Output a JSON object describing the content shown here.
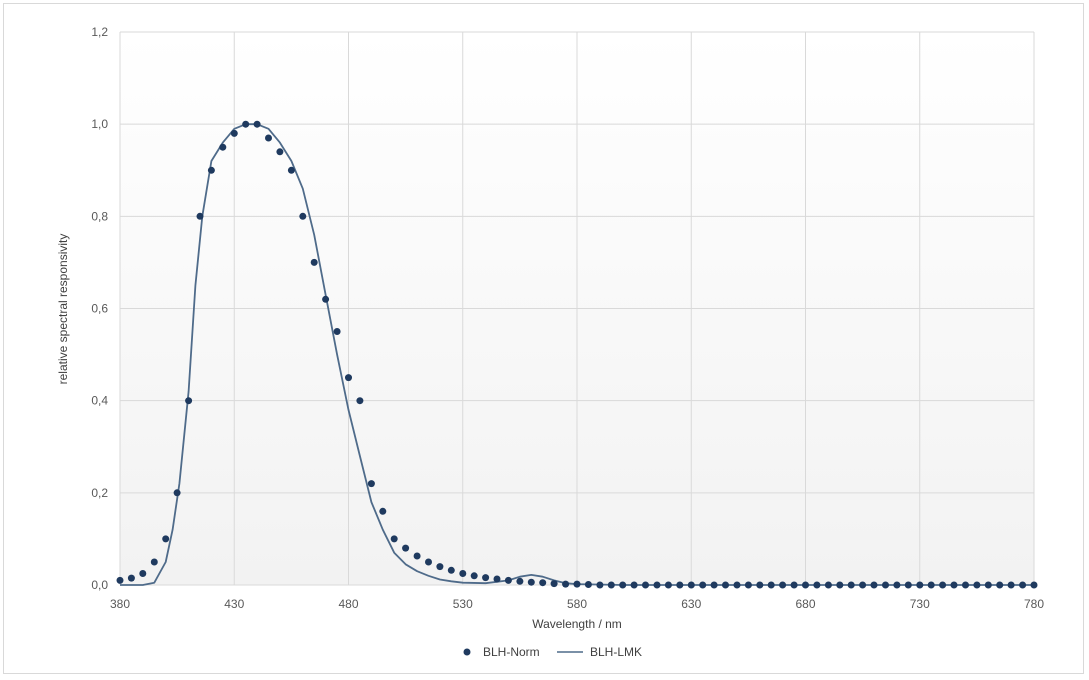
{
  "chart_data": {
    "type": "scatter",
    "xlabel": "Wavelength / nm",
    "ylabel": "relative spectral responsivity",
    "xlim": [
      380,
      780
    ],
    "ylim": [
      0,
      1.2
    ],
    "x_ticks": [
      "380",
      "430",
      "480",
      "530",
      "580",
      "630",
      "680",
      "730",
      "780"
    ],
    "y_ticks": [
      "0,0",
      "0,2",
      "0,4",
      "0,6",
      "0,8",
      "1,0",
      "1,2"
    ],
    "grid": true,
    "legend_position": "bottom",
    "legend": [
      "BLH-Norm",
      "BLH-LMK"
    ],
    "colors": {
      "norm": "#1f3a5f",
      "lmk": "#4f6b8a",
      "grid": "#d9d9d9",
      "plot_bg_bottom": "#f2f2f2"
    },
    "series": [
      {
        "name": "BLH-Norm",
        "style": "markers",
        "x": [
          380,
          385,
          390,
          395,
          400,
          405,
          410,
          415,
          420,
          425,
          430,
          435,
          440,
          445,
          450,
          455,
          460,
          465,
          470,
          475,
          480,
          485,
          490,
          495,
          500,
          505,
          510,
          515,
          520,
          525,
          530,
          535,
          540,
          545,
          550,
          555,
          560,
          565,
          570,
          575,
          580,
          585,
          590,
          595,
          600,
          605,
          610,
          615,
          620,
          625,
          630,
          635,
          640,
          645,
          650,
          655,
          660,
          665,
          670,
          675,
          680,
          685,
          690,
          695,
          700,
          705,
          710,
          715,
          720,
          725,
          730,
          735,
          740,
          745,
          750,
          755,
          760,
          765,
          770,
          775,
          780
        ],
        "y": [
          0.01,
          0.015,
          0.025,
          0.05,
          0.1,
          0.2,
          0.4,
          0.8,
          0.9,
          0.95,
          0.98,
          1.0,
          1.0,
          0.97,
          0.94,
          0.9,
          0.8,
          0.7,
          0.62,
          0.55,
          0.45,
          0.4,
          0.22,
          0.16,
          0.1,
          0.08,
          0.063,
          0.05,
          0.04,
          0.032,
          0.025,
          0.02,
          0.016,
          0.013,
          0.01,
          0.008,
          0.006,
          0.005,
          0.003,
          0.002,
          0.002,
          0.001,
          0,
          0,
          0,
          0,
          0,
          0,
          0,
          0,
          0,
          0,
          0,
          0,
          0,
          0,
          0,
          0,
          0,
          0,
          0,
          0,
          0,
          0,
          0,
          0,
          0,
          0,
          0,
          0,
          0,
          0,
          0,
          0,
          0,
          0,
          0,
          0,
          0,
          0,
          0
        ]
      },
      {
        "name": "BLH-LMK",
        "style": "line",
        "x": [
          380,
          385,
          390,
          395,
          400,
          403,
          406,
          410,
          413,
          416,
          420,
          425,
          430,
          435,
          440,
          445,
          450,
          455,
          460,
          465,
          470,
          475,
          480,
          485,
          490,
          495,
          500,
          505,
          510,
          515,
          520,
          525,
          530,
          540,
          550,
          555,
          560,
          565,
          570,
          575,
          580,
          600,
          650,
          700,
          780
        ],
        "y": [
          0,
          0,
          0,
          0.005,
          0.05,
          0.12,
          0.22,
          0.42,
          0.65,
          0.8,
          0.92,
          0.96,
          0.99,
          1.0,
          1.0,
          0.99,
          0.96,
          0.92,
          0.86,
          0.76,
          0.63,
          0.5,
          0.38,
          0.28,
          0.18,
          0.12,
          0.07,
          0.045,
          0.03,
          0.02,
          0.012,
          0.008,
          0.005,
          0.004,
          0.01,
          0.018,
          0.022,
          0.018,
          0.01,
          0.004,
          0.002,
          0,
          0,
          0,
          0
        ]
      }
    ]
  }
}
